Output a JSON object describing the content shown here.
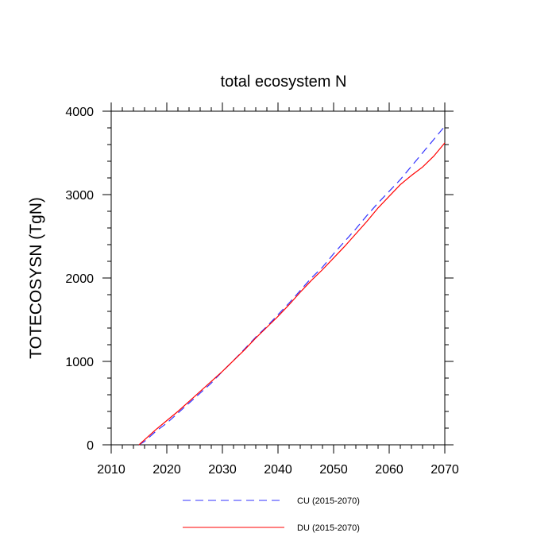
{
  "chart_data": {
    "type": "line",
    "title": "total ecosystem N",
    "xlabel": "",
    "ylabel": "TOTECOSYSN  (TgN)",
    "xlim": [
      2010,
      2070
    ],
    "ylim": [
      0,
      4000
    ],
    "x_ticks": [
      2010,
      2020,
      2030,
      2040,
      2050,
      2060,
      2070
    ],
    "y_ticks": [
      0,
      1000,
      2000,
      3000,
      4000
    ],
    "x_tick_labels": [
      "2010",
      "2020",
      "2030",
      "2040",
      "2050",
      "2060",
      "2070"
    ],
    "y_tick_labels": [
      "0",
      "1000",
      "2000",
      "3000",
      "4000"
    ],
    "grid": false,
    "legend_position": "bottom-center",
    "series": [
      {
        "name": "CU (2015-2070)",
        "color": "#3333ff",
        "style": "dashed",
        "x": [
          2015,
          2016,
          2018,
          2020,
          2022,
          2024,
          2026,
          2028,
          2030,
          2032,
          2034,
          2036,
          2038,
          2040,
          2042,
          2044,
          2046,
          2048,
          2050,
          2052,
          2054,
          2056,
          2058,
          2060,
          2062,
          2064,
          2066,
          2068,
          2070
        ],
        "values": [
          0,
          40,
          160,
          260,
          380,
          500,
          620,
          740,
          880,
          1010,
          1150,
          1290,
          1420,
          1560,
          1700,
          1850,
          2000,
          2130,
          2290,
          2440,
          2590,
          2750,
          2900,
          3040,
          3180,
          3340,
          3500,
          3660,
          3820
        ]
      },
      {
        "name": "DU (2015-2070)",
        "color": "#ff0000",
        "style": "solid",
        "x": [
          2015,
          2016,
          2018,
          2020,
          2022,
          2024,
          2026,
          2028,
          2030,
          2032,
          2034,
          2036,
          2038,
          2040,
          2042,
          2044,
          2046,
          2048,
          2050,
          2052,
          2054,
          2056,
          2058,
          2060,
          2062,
          2064,
          2066,
          2068,
          2070
        ],
        "values": [
          0,
          60,
          180,
          290,
          400,
          520,
          640,
          760,
          880,
          1010,
          1140,
          1280,
          1410,
          1540,
          1680,
          1830,
          1970,
          2100,
          2240,
          2380,
          2530,
          2680,
          2840,
          2980,
          3120,
          3230,
          3330,
          3460,
          3620
        ]
      }
    ]
  }
}
